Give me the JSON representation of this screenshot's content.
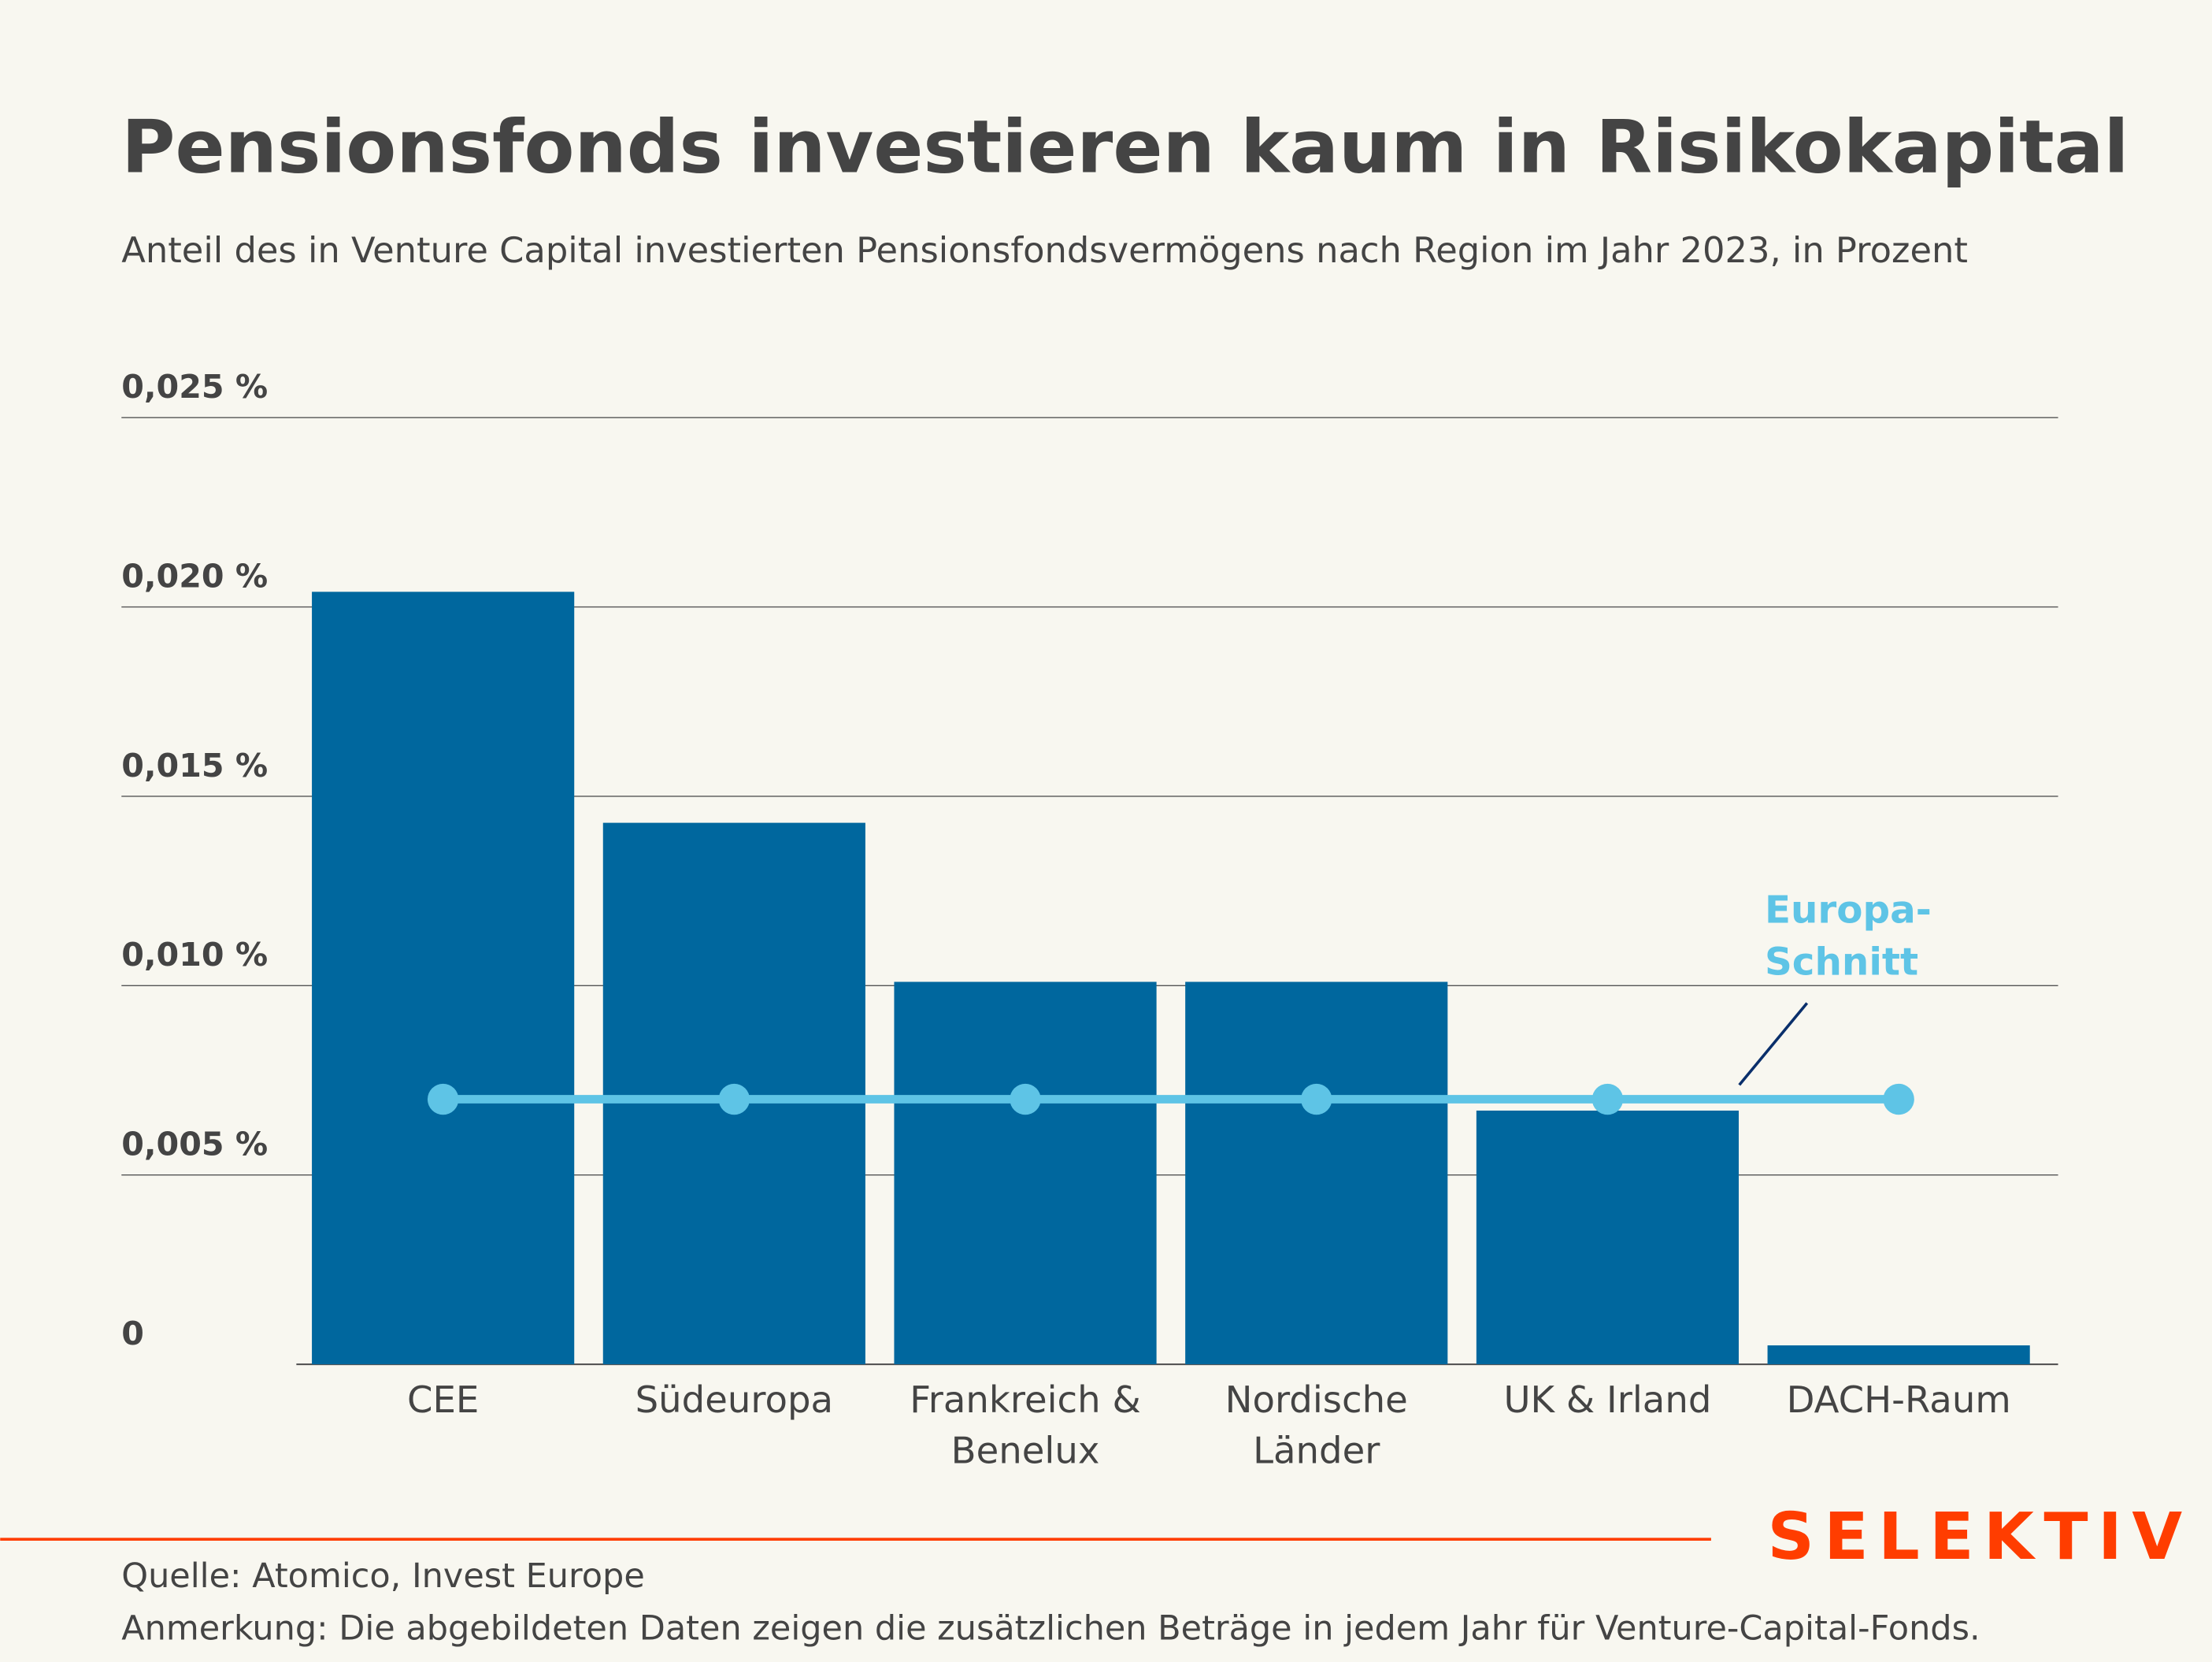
{
  "colors": {
    "bar": "#00679e",
    "avg": "#5ec4e6",
    "leader": "#0a2f6b",
    "brand": "#ff3d00",
    "grid": "#555555",
    "text": "#444444",
    "bg": "#f8f7f0"
  },
  "chart_data": {
    "type": "bar",
    "title": "Pensionsfonds investieren kaum in Risikokapital",
    "subtitle": "Anteil des in Venture Capital investierten Pensionsfondsvermögens nach Region im Jahr 2023, in Prozent",
    "categories": [
      "CEE",
      "Südeuropa",
      "Frankreich & Benelux",
      "Nordische Länder",
      "UK & Irland",
      "DACH-Raum"
    ],
    "category_lines": [
      [
        "CEE"
      ],
      [
        "Südeuropa"
      ],
      [
        "Frankreich &",
        "Benelux"
      ],
      [
        "Nordische",
        "Länder"
      ],
      [
        "UK & Irland"
      ],
      [
        "DACH-Raum"
      ]
    ],
    "values": [
      0.0204,
      0.0143,
      0.0101,
      0.0101,
      0.0067,
      0.0005
    ],
    "average": {
      "name": "Europa-Schnitt",
      "label_lines": [
        "Europa-",
        "Schnitt"
      ],
      "value": 0.007
    },
    "ylim": [
      0,
      0.025
    ],
    "yticks": [
      0,
      0.005,
      0.01,
      0.015,
      0.02,
      0.025
    ],
    "ytick_labels": [
      "0",
      "0,005 %",
      "0,010 %",
      "0,015 %",
      "0,020 %",
      "0,025 %"
    ],
    "grid": true,
    "xlabel": "",
    "ylabel": ""
  },
  "footer": {
    "source": "Quelle: Atomico, Invest Europe",
    "note": "Anmerkung: Die abgebildeten Daten zeigen die zusätzlichen Beträge in jedem Jahr für Venture-Capital-Fonds.",
    "logo": "SELEKTIV"
  }
}
